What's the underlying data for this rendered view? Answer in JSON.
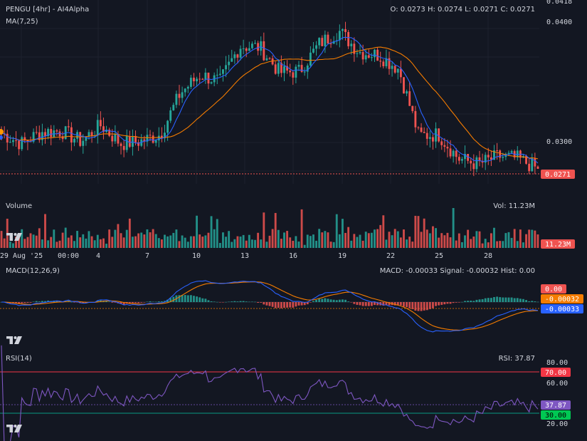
{
  "header": {
    "symbol_title": "PENGU [4hr] - AI4Alpha",
    "ohlc": "O: 0.0273 H: 0.0274 L: 0.0271 C: 0.0271",
    "ma_label": "MA(7,25)",
    "volume_label": "Volume",
    "vol_readout": "Vol: 11.23M",
    "macd_label": "MACD(12,26,9)",
    "macd_readout": "MACD: -0.00033 Signal: -0.00032 Hist: 0.00",
    "rsi_label": "RSI(14)",
    "rsi_readout": "RSI: 37.87"
  },
  "price_axis": {
    "ticks": [
      "0.0418",
      "0.0400",
      "0.0300"
    ],
    "last_tag": "0.0271"
  },
  "volume_axis": {
    "tag": "11.23M"
  },
  "macd_axis": {
    "hist_tag": "0.00",
    "signal_tag": "-0.00032",
    "macd_tag": "-0.00033"
  },
  "rsi_axis": {
    "ticks": [
      "80.00",
      "60.00",
      "20.00"
    ],
    "upper_tag": "70.00",
    "value_tag": "37.87",
    "lower_tag": "30.00"
  },
  "time_axis": {
    "labels": [
      "29 Aug '25",
      "00:00",
      "4",
      "7",
      "10",
      "13",
      "16",
      "19",
      "22",
      "25",
      "28"
    ]
  },
  "colors": {
    "background": "#131722",
    "up": "#26a69a",
    "down": "#ef5350",
    "ma_fast": "#2962ff",
    "ma_slow": "#f57c00",
    "macd_line": "#2962ff",
    "signal_line": "#f57c00",
    "rsi_line": "#7e57c2",
    "rsi_upper": "#f23645",
    "rsi_lower": "#089981"
  },
  "icons": {
    "logo": "tradingview-logo-icon"
  },
  "chart_data": [
    {
      "type": "candlestick",
      "title": "PENGU [4hr] - AI4Alpha",
      "ylim": [
        0.0258,
        0.0418
      ],
      "ohlc_last": {
        "open": 0.0273,
        "high": 0.0274,
        "low": 0.0271,
        "close": 0.0271
      },
      "close_path_anchors": [
        0.0302,
        0.0293,
        0.0303,
        0.0304,
        0.0295,
        0.0309,
        0.0293,
        0.0295,
        0.0301,
        0.0337,
        0.0353,
        0.0347,
        0.0378,
        0.0377,
        0.0355,
        0.0356,
        0.038,
        0.0391,
        0.0373,
        0.037,
        0.0358,
        0.03,
        0.0301,
        0.028,
        0.0275,
        0.0282,
        0.028,
        0.0271
      ],
      "ma_series": [
        {
          "name": "MA(7,25)",
          "period": 7
        },
        {
          "name": "MA(7,25)",
          "period": 25
        }
      ]
    },
    {
      "type": "bar",
      "title": "Volume",
      "last_value": "11.23M"
    },
    {
      "type": "line",
      "title": "MACD(12,26,9)",
      "macd": -0.00033,
      "signal": -0.00032,
      "hist": 0.0
    },
    {
      "type": "line",
      "title": "RSI(14)",
      "value": 37.87,
      "upper_band": 70,
      "lower_band": 30,
      "ylim": [
        10,
        90
      ]
    }
  ]
}
